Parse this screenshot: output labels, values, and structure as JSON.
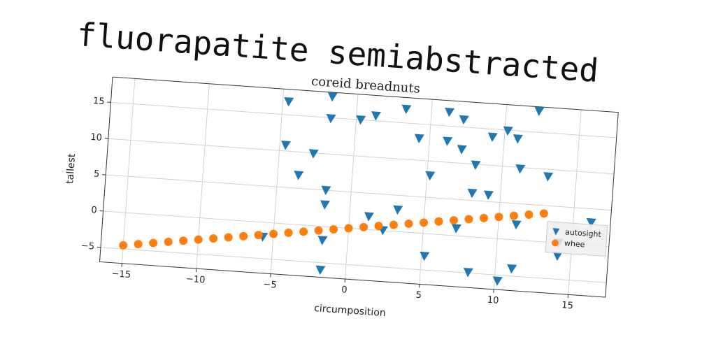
{
  "header": {
    "title": "fluorapatite semiabstracted"
  },
  "chart_data": {
    "type": "scatter",
    "title": "coreid breadnuts",
    "x_label": "circumposition",
    "y_label": "tallest",
    "xlim": [
      -16.5,
      17.5
    ],
    "ylim": [
      -7,
      18.5
    ],
    "xticks": [
      {
        "value": -15,
        "label": "−15"
      },
      {
        "value": -10,
        "label": "−10"
      },
      {
        "value": -5,
        "label": "−5"
      },
      0,
      5,
      10,
      15
    ],
    "yticks": [
      {
        "value": -5,
        "label": "−5"
      },
      0,
      5,
      10,
      15
    ],
    "grid": true,
    "legend": "right",
    "series": [
      {
        "name": "autosight",
        "color": "#1f77b4",
        "marker": "triangle-down",
        "x": [
          -4.6,
          -4.6,
          -3.6,
          -2.7,
          -1.7,
          -1.7,
          -1.7,
          -1.7,
          -1.7,
          -1.7,
          -5.7,
          0.3,
          1.3,
          1.3,
          2.3,
          3.2,
          3.3,
          4.3,
          5.2,
          5.2,
          6.2,
          6.2,
          7.2,
          7.2,
          7.2,
          8.2,
          8.2,
          8.1,
          9.2,
          9.2,
          10.2,
          10.2,
          10.9,
          11.2,
          11.2,
          11.1,
          12.2,
          13.1,
          14.1,
          14.1,
          16.2
        ],
        "values": [
          16.8,
          10.8,
          6.8,
          9.9,
          17.9,
          14.9,
          5.0,
          3.0,
          -1.9,
          -6.0,
          -2.0,
          15.0,
          15.7,
          1.8,
          0.05,
          3.0,
          16.9,
          13.0,
          8.0,
          -3.1,
          16.9,
          12.9,
          1.0,
          16.0,
          11.9,
          -4.9,
          9.9,
          6.0,
          5.9,
          13.9,
          -5.8,
          14.9,
          13.9,
          9.8,
          2.1,
          -4.0,
          17.9,
          9.0,
          0.0,
          -1.8,
          3.1
        ]
      },
      {
        "name": "whee",
        "color": "#ff7f0e",
        "marker": "circle",
        "x": [
          -15,
          -14,
          -13,
          -12,
          -11,
          -10,
          -9,
          -8,
          -7,
          -6,
          -5,
          -4,
          -3,
          -2,
          -1,
          0,
          1,
          2,
          3,
          4,
          5,
          6,
          7,
          8,
          9,
          10,
          11,
          12,
          13
        ],
        "values": [
          -4.5,
          -4.2,
          -3.9,
          -3.6,
          -3.3,
          -3,
          -2.7,
          -2.4,
          -2.1,
          -1.8,
          -1.5,
          -1.2,
          -0.9,
          -0.6,
          -0.3,
          0,
          0.3,
          0.6,
          0.9,
          1.2,
          1.5,
          1.8,
          2.1,
          2.4,
          2.7,
          3,
          3.3,
          3.6,
          3.9
        ]
      }
    ]
  }
}
